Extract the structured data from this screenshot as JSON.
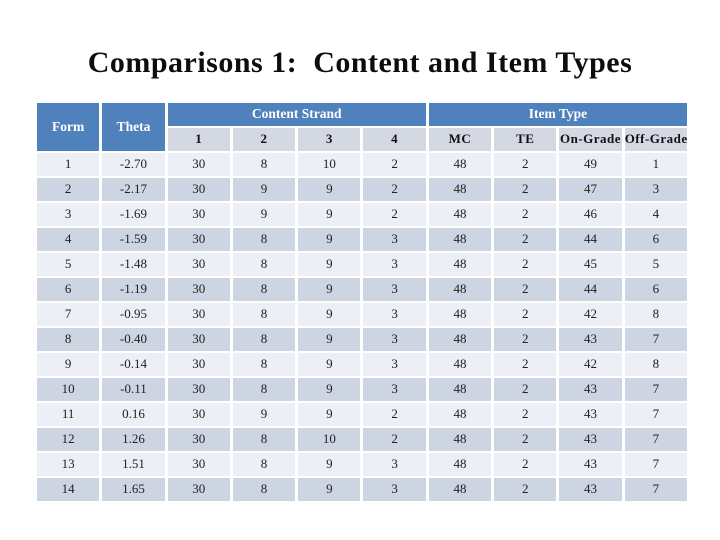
{
  "title": "Comparisons 1:  Content and Item Types",
  "colors": {
    "header_blue": "#4f81bd",
    "subheader_bg": "#d3d8e3",
    "row_light": "#eceff5",
    "row_dark": "#cdd4e2",
    "title_text": "#0d0d0d"
  },
  "table": {
    "corner_headers": [
      "Form",
      "Theta"
    ],
    "group_headers": [
      {
        "label": "Content Strand",
        "span": 4
      },
      {
        "label": "Item Type",
        "span": 4
      }
    ],
    "sub_headers": [
      "1",
      "2",
      "3",
      "4",
      "MC",
      "TE",
      "On-Grade",
      "Off-Grade"
    ],
    "rows": [
      {
        "form": "1",
        "theta": "-2.70",
        "values": [
          "30",
          "8",
          "10",
          "2",
          "48",
          "2",
          "49",
          "1"
        ]
      },
      {
        "form": "2",
        "theta": "-2.17",
        "values": [
          "30",
          "9",
          "9",
          "2",
          "48",
          "2",
          "47",
          "3"
        ]
      },
      {
        "form": "3",
        "theta": "-1.69",
        "values": [
          "30",
          "9",
          "9",
          "2",
          "48",
          "2",
          "46",
          "4"
        ]
      },
      {
        "form": "4",
        "theta": "-1.59",
        "values": [
          "30",
          "8",
          "9",
          "3",
          "48",
          "2",
          "44",
          "6"
        ]
      },
      {
        "form": "5",
        "theta": "-1.48",
        "values": [
          "30",
          "8",
          "9",
          "3",
          "48",
          "2",
          "45",
          "5"
        ]
      },
      {
        "form": "6",
        "theta": "-1.19",
        "values": [
          "30",
          "8",
          "9",
          "3",
          "48",
          "2",
          "44",
          "6"
        ]
      },
      {
        "form": "7",
        "theta": "-0.95",
        "values": [
          "30",
          "8",
          "9",
          "3",
          "48",
          "2",
          "42",
          "8"
        ]
      },
      {
        "form": "8",
        "theta": "-0.40",
        "values": [
          "30",
          "8",
          "9",
          "3",
          "48",
          "2",
          "43",
          "7"
        ]
      },
      {
        "form": "9",
        "theta": "-0.14",
        "values": [
          "30",
          "8",
          "9",
          "3",
          "48",
          "2",
          "42",
          "8"
        ]
      },
      {
        "form": "10",
        "theta": "-0.11",
        "values": [
          "30",
          "8",
          "9",
          "3",
          "48",
          "2",
          "43",
          "7"
        ]
      },
      {
        "form": "11",
        "theta": "0.16",
        "values": [
          "30",
          "9",
          "9",
          "2",
          "48",
          "2",
          "43",
          "7"
        ]
      },
      {
        "form": "12",
        "theta": "1.26",
        "values": [
          "30",
          "8",
          "10",
          "2",
          "48",
          "2",
          "43",
          "7"
        ]
      },
      {
        "form": "13",
        "theta": "1.51",
        "values": [
          "30",
          "8",
          "9",
          "3",
          "48",
          "2",
          "43",
          "7"
        ]
      },
      {
        "form": "14",
        "theta": "1.65",
        "values": [
          "30",
          "8",
          "9",
          "3",
          "48",
          "2",
          "43",
          "7"
        ]
      }
    ]
  }
}
